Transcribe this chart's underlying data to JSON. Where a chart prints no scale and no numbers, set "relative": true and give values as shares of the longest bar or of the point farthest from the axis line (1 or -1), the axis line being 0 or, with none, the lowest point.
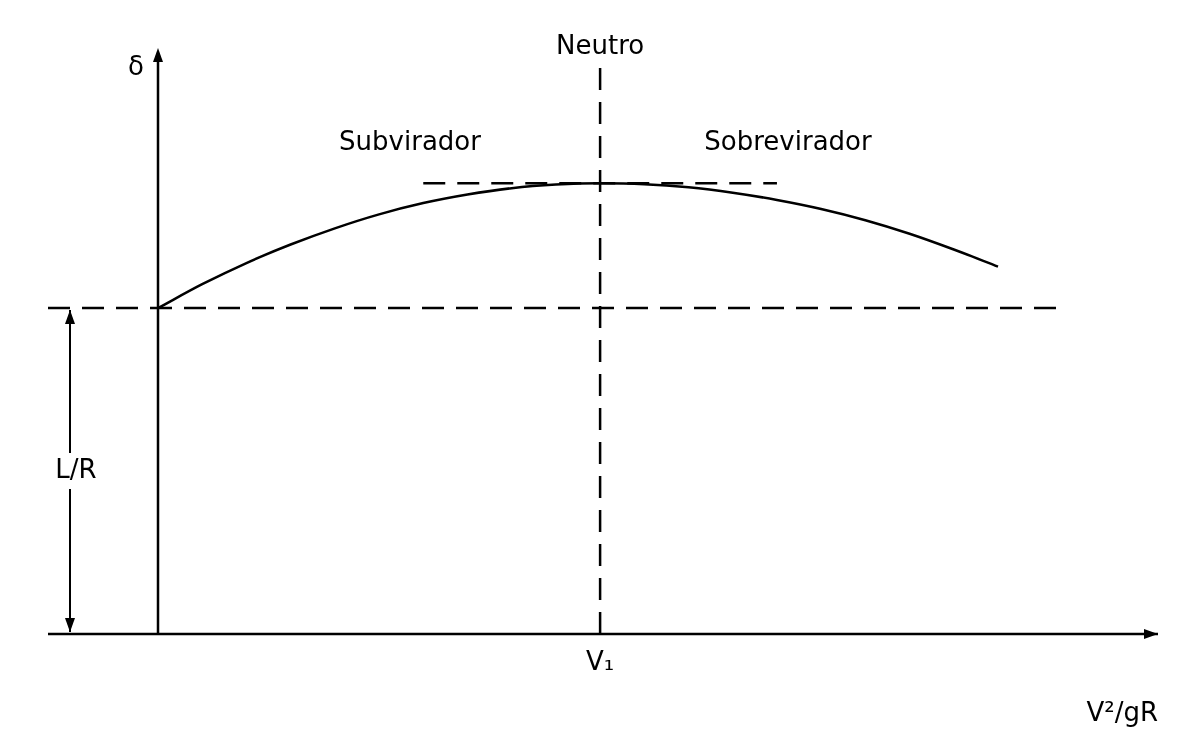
{
  "chart_data": {
    "type": "line",
    "relative": true,
    "xlabel": "V²/gR",
    "ylabel": "δ",
    "grid": false,
    "legend": false,
    "marker": "none",
    "categories": [
      null,
      null,
      null,
      null,
      null,
      null,
      null,
      null,
      null,
      null,
      null,
      null,
      null,
      null,
      null,
      null,
      null,
      null,
      null,
      null
    ],
    "series": [
      {
        "color": "#000000",
        "line_style": "solid",
        "values": [
          0.723,
          0.776,
          0.823,
          0.864,
          0.9,
          0.931,
          0.956,
          0.975,
          0.989,
          0.997,
          1,
          0.998,
          0.991,
          0.979,
          0.963,
          0.943,
          0.918,
          0.888,
          0.853,
          0.815
        ]
      },
      {
        "color": "#000000",
        "line_style": "dashed",
        "values": [
          null,
          null,
          null,
          null,
          null,
          null,
          1,
          1,
          1,
          1,
          1,
          1,
          1,
          1,
          1,
          null,
          null,
          null,
          null,
          null
        ]
      }
    ],
    "ref_lines": [
      {
        "axis": "x",
        "value": "V₁",
        "label": "Neutro",
        "line_style": "dashed",
        "color": "#000000"
      },
      {
        "axis": "y",
        "value": 0.723,
        "label": "L/R",
        "line_style": "dashed",
        "color": "#000000"
      }
    ],
    "annotations": [
      "Subvirador",
      "Sobrevirador"
    ]
  }
}
